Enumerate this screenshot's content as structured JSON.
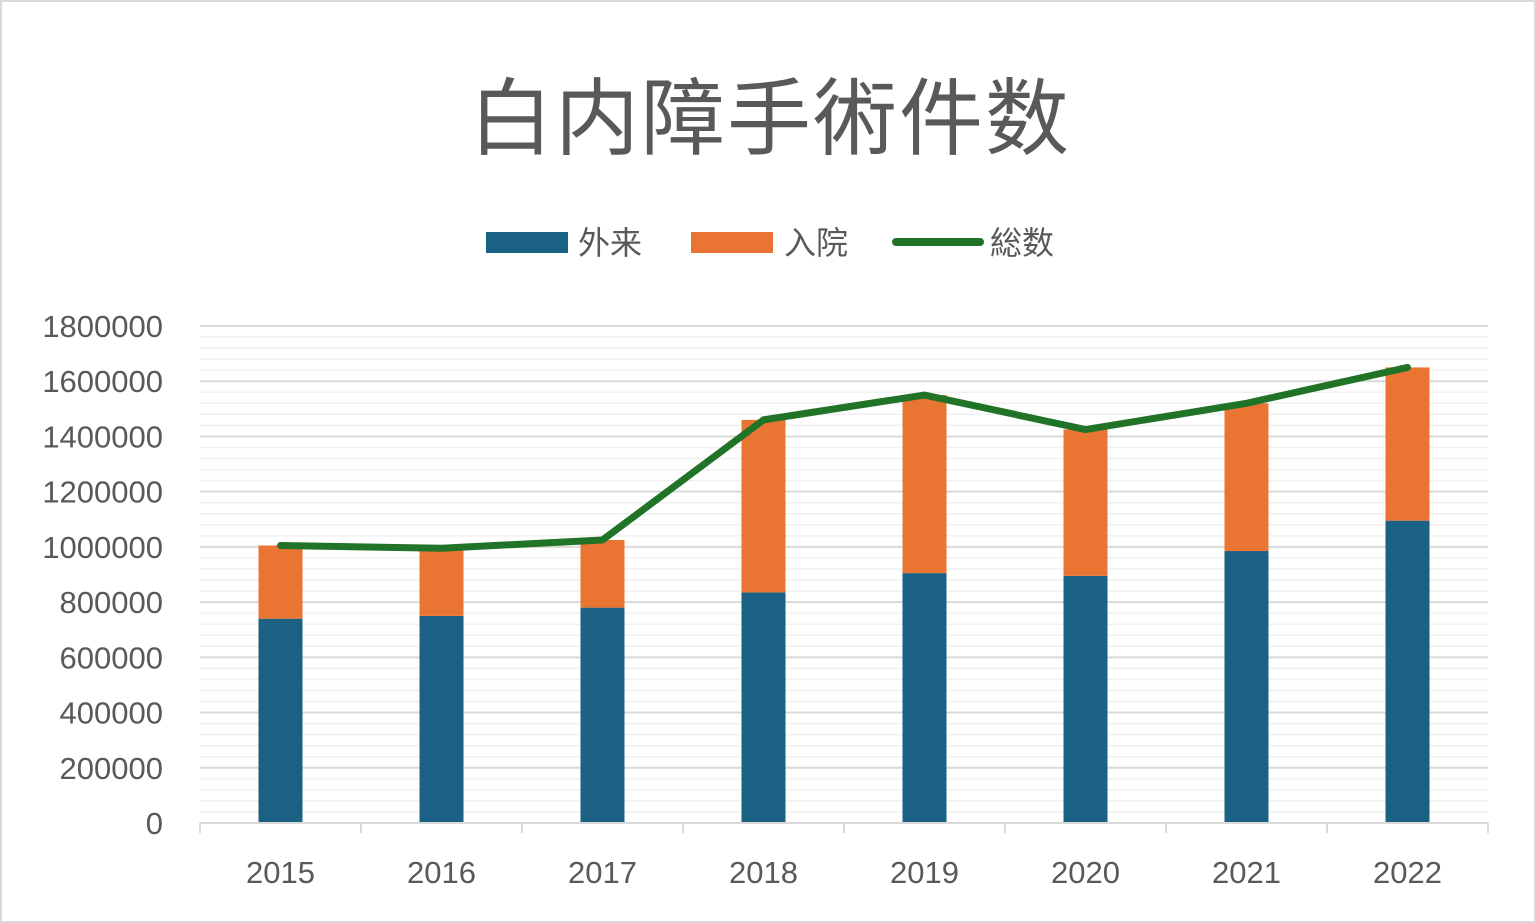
{
  "chart_data": {
    "type": "bar",
    "title": "白内障手術件数",
    "categories": [
      "2015",
      "2016",
      "2017",
      "2018",
      "2019",
      "2020",
      "2021",
      "2022"
    ],
    "series": [
      {
        "name": "外来",
        "kind": "stacked-bar",
        "color": "#1a6183",
        "values": [
          740000,
          750000,
          780000,
          835000,
          905000,
          895000,
          985000,
          1095000
        ]
      },
      {
        "name": "入院",
        "kind": "stacked-bar",
        "color": "#ea7533",
        "values": [
          265000,
          245000,
          245000,
          625000,
          645000,
          530000,
          535000,
          555000
        ]
      },
      {
        "name": "総数",
        "kind": "line",
        "color": "#207327",
        "values": [
          1005000,
          995000,
          1025000,
          1460000,
          1550000,
          1425000,
          1520000,
          1650000
        ]
      }
    ],
    "ylim": [
      0,
      1800000
    ],
    "yticks": [
      "0",
      "200000",
      "400000",
      "600000",
      "800000",
      "1000000",
      "1200000",
      "1400000",
      "1600000",
      "1800000"
    ],
    "grid": true,
    "legend_position": "top"
  }
}
